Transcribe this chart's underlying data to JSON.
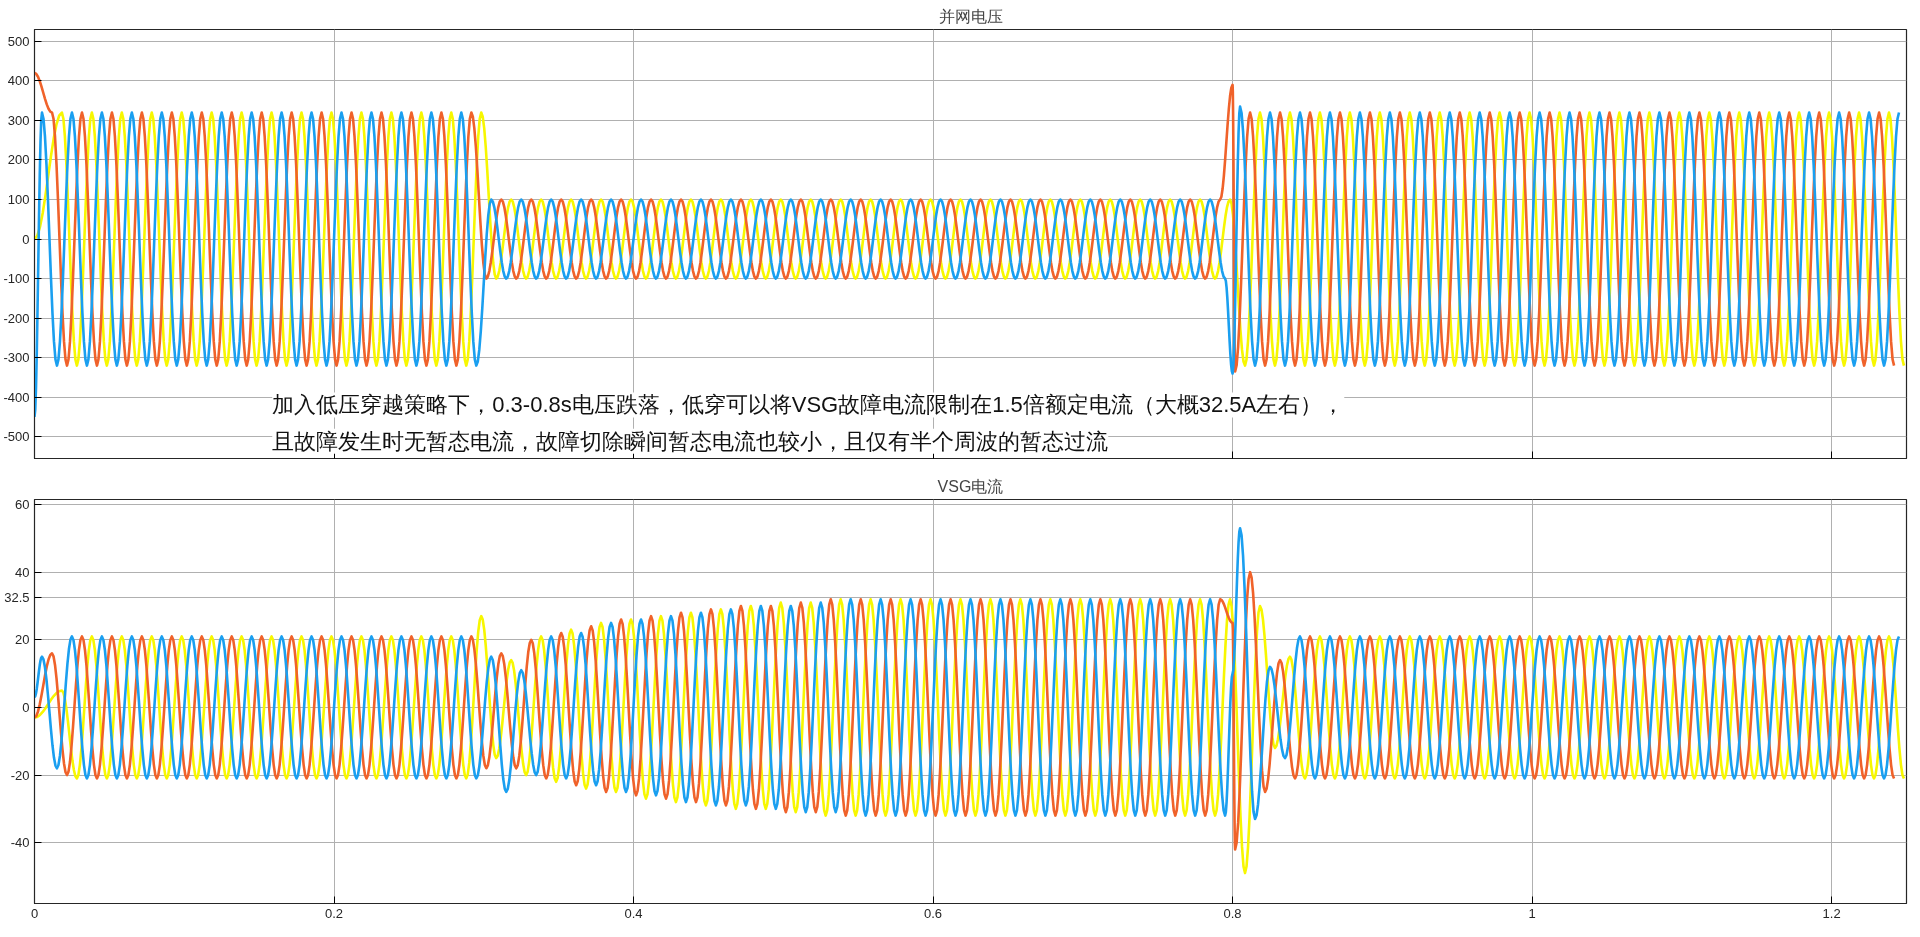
{
  "chart_data": [
    {
      "type": "line",
      "title": "并网电压",
      "xlim": [
        0,
        1.25
      ],
      "ylim": [
        -555,
        530
      ],
      "xticks": [
        0,
        0.2,
        0.4,
        0.6,
        0.8,
        1,
        1.2
      ],
      "yticks": [
        -500,
        -400,
        -300,
        -200,
        -100,
        0,
        100,
        200,
        300,
        400,
        500
      ],
      "grid": true,
      "tick_labels": "y",
      "annotations": [
        "加入低压穿越策略下，0.3-0.8s电压跌落，低穿可以将VSG故障电流限制在1.5倍额定电流（大概32.5A左右），",
        "且故障发生时无暂态电流，故障切除瞬间暂态电流也较小，且仅有半个周波的暂态过流"
      ],
      "series": [
        {
          "color": "#f7f700",
          "x": [
            0,
            0.0183,
            0.0283,
            0.0383,
            0.0483,
            0.0583,
            0.0683,
            0.0783,
            0.0883,
            0.0983,
            0.1083,
            0.1183,
            0.1283,
            0.1383,
            0.1483,
            0.1583,
            0.1683,
            0.1783,
            0.1883,
            0.1983,
            0.2083,
            0.2183,
            0.2283,
            0.2383,
            0.2483,
            0.2583,
            0.2683,
            0.2783,
            0.2883,
            0.2983,
            0.3083,
            0.3183,
            0.3283,
            0.3383,
            0.3483,
            0.3583,
            0.3683,
            0.3783,
            0.3883,
            0.3983,
            0.4083,
            0.4183,
            0.4283,
            0.4383,
            0.4483,
            0.4583,
            0.4683,
            0.4783,
            0.4883,
            0.4983,
            0.5083,
            0.5183,
            0.5283,
            0.5383,
            0.5483,
            0.5583,
            0.5683,
            0.5783,
            0.5883,
            0.5983,
            0.6083,
            0.6183,
            0.6283,
            0.6383,
            0.6483,
            0.6583,
            0.6683,
            0.6783,
            0.6883,
            0.6983,
            0.7083,
            0.7183,
            0.7283,
            0.7383,
            0.7483,
            0.7583,
            0.7683,
            0.7783,
            0.7883,
            0.7983,
            0.8083,
            0.8183,
            0.8283,
            0.8383,
            0.8483,
            0.8583,
            0.8683,
            0.8783,
            0.8883,
            0.8983,
            0.9083,
            0.9183,
            0.9283,
            0.9383,
            0.9483,
            0.9583,
            0.9683,
            0.9783,
            0.9883,
            0.9983,
            1.0083,
            1.0183,
            1.0283,
            1.0383,
            1.0483,
            1.0583,
            1.0683,
            1.0783,
            1.0883,
            1.0983,
            1.1083,
            1.1183,
            1.1283,
            1.1383,
            1.1483,
            1.1583,
            1.1683,
            1.1783,
            1.1883,
            1.1983,
            1.2083,
            1.2183,
            1.2283,
            1.2383,
            1.2483
          ],
          "values": [
            0,
            320,
            -320,
            320,
            -320,
            320,
            -320,
            320,
            -320,
            320,
            -320,
            320,
            -320,
            320,
            -320,
            320,
            -320,
            320,
            -320,
            320,
            -320,
            320,
            -320,
            320,
            -320,
            320,
            -320,
            320,
            -320,
            320,
            -100,
            100,
            -100,
            100,
            -100,
            100,
            -100,
            100,
            -100,
            100,
            -100,
            100,
            -100,
            100,
            -100,
            100,
            -100,
            100,
            -100,
            100,
            -100,
            100,
            -100,
            100,
            -100,
            100,
            -100,
            100,
            -100,
            100,
            -100,
            100,
            -100,
            100,
            -100,
            100,
            -100,
            100,
            -100,
            100,
            -100,
            100,
            -100,
            100,
            -100,
            100,
            -100,
            100,
            -100,
            100,
            -320,
            320,
            -320,
            320,
            -320,
            320,
            -320,
            320,
            -320,
            320,
            -320,
            320,
            -320,
            320,
            -320,
            320,
            -320,
            320,
            -320,
            320,
            -320,
            320,
            -320,
            320,
            -320,
            320,
            -320,
            320,
            -320,
            320,
            -320,
            320,
            -320,
            320,
            -320,
            320,
            -320,
            320,
            -320,
            320,
            -320,
            320,
            -320,
            320,
            -320
          ]
        },
        {
          "color": "#f0622a",
          "x": [
            0,
            0.0117,
            0.0217,
            0.0317,
            0.0417,
            0.0517,
            0.0617,
            0.0717,
            0.0817,
            0.0917,
            0.1017,
            0.1117,
            0.1217,
            0.1317,
            0.1417,
            0.1517,
            0.1617,
            0.1717,
            0.1817,
            0.1917,
            0.2017,
            0.2117,
            0.2217,
            0.2317,
            0.2417,
            0.2517,
            0.2617,
            0.2717,
            0.2817,
            0.2917,
            0.3017,
            0.3117,
            0.3217,
            0.3317,
            0.3417,
            0.3517,
            0.3617,
            0.3717,
            0.3817,
            0.3917,
            0.4017,
            0.4117,
            0.4217,
            0.4317,
            0.4417,
            0.4517,
            0.4617,
            0.4717,
            0.4817,
            0.4917,
            0.5017,
            0.5117,
            0.5217,
            0.5317,
            0.5417,
            0.5517,
            0.5617,
            0.5717,
            0.5817,
            0.5917,
            0.6017,
            0.6117,
            0.6217,
            0.6317,
            0.6417,
            0.6517,
            0.6617,
            0.6717,
            0.6817,
            0.6917,
            0.7017,
            0.7117,
            0.7217,
            0.7317,
            0.7417,
            0.7517,
            0.7617,
            0.7717,
            0.7817,
            0.7917,
            0.8,
            0.8017,
            0.8117,
            0.8217,
            0.8317,
            0.8417,
            0.8517,
            0.8617,
            0.8717,
            0.8817,
            0.8917,
            0.9017,
            0.9117,
            0.9217,
            0.9317,
            0.9417,
            0.9517,
            0.9617,
            0.9717,
            0.9817,
            0.9917,
            1.0017,
            1.0117,
            1.0217,
            1.0317,
            1.0417,
            1.0517,
            1.0617,
            1.0717,
            1.0817,
            1.0917,
            1.1017,
            1.1117,
            1.1217,
            1.1317,
            1.1417,
            1.1517,
            1.1617,
            1.1717,
            1.1817,
            1.1917,
            1.2017,
            1.2117,
            1.2217,
            1.2317,
            1.2417
          ],
          "values": [
            420,
            320,
            -320,
            320,
            -320,
            320,
            -320,
            320,
            -320,
            320,
            -320,
            320,
            -320,
            320,
            -320,
            320,
            -320,
            320,
            -320,
            320,
            -320,
            320,
            -320,
            320,
            -320,
            320,
            -320,
            320,
            -320,
            320,
            -100,
            100,
            -100,
            100,
            -100,
            100,
            -100,
            100,
            -100,
            100,
            -100,
            100,
            -100,
            100,
            -100,
            100,
            -100,
            100,
            -100,
            100,
            -100,
            100,
            -100,
            100,
            -100,
            100,
            -100,
            100,
            -100,
            100,
            -100,
            100,
            -100,
            100,
            -100,
            100,
            -100,
            100,
            -100,
            100,
            -100,
            100,
            -100,
            100,
            -100,
            100,
            -100,
            100,
            -100,
            100,
            390,
            -335,
            320,
            -320,
            320,
            -320,
            320,
            -320,
            320,
            -320,
            320,
            -320,
            320,
            -320,
            320,
            -320,
            320,
            -320,
            320,
            -320,
            320,
            -320,
            320,
            -320,
            320,
            -320,
            320,
            -320,
            320,
            -320,
            320,
            -320,
            320,
            -320,
            320,
            -320,
            320,
            -320,
            320,
            -320,
            320,
            -320,
            320,
            -320,
            320,
            -320
          ]
        },
        {
          "color": "#1a9ff0",
          "x": [
            0,
            0.005,
            0.015,
            0.025,
            0.035,
            0.045,
            0.055,
            0.065,
            0.075,
            0.085,
            0.095,
            0.105,
            0.115,
            0.125,
            0.135,
            0.145,
            0.155,
            0.165,
            0.175,
            0.185,
            0.195,
            0.205,
            0.215,
            0.225,
            0.235,
            0.245,
            0.255,
            0.265,
            0.275,
            0.285,
            0.295,
            0.305,
            0.315,
            0.325,
            0.335,
            0.345,
            0.355,
            0.365,
            0.375,
            0.385,
            0.395,
            0.405,
            0.415,
            0.425,
            0.435,
            0.445,
            0.455,
            0.465,
            0.475,
            0.485,
            0.495,
            0.505,
            0.515,
            0.525,
            0.535,
            0.545,
            0.555,
            0.565,
            0.575,
            0.585,
            0.595,
            0.605,
            0.615,
            0.625,
            0.635,
            0.645,
            0.655,
            0.665,
            0.675,
            0.685,
            0.695,
            0.705,
            0.715,
            0.725,
            0.735,
            0.745,
            0.755,
            0.765,
            0.775,
            0.785,
            0.795,
            0.8,
            0.805,
            0.815,
            0.825,
            0.835,
            0.845,
            0.855,
            0.865,
            0.875,
            0.885,
            0.895,
            0.905,
            0.915,
            0.925,
            0.935,
            0.945,
            0.955,
            0.965,
            0.975,
            0.985,
            0.995,
            1.005,
            1.015,
            1.025,
            1.035,
            1.045,
            1.055,
            1.065,
            1.075,
            1.085,
            1.095,
            1.105,
            1.115,
            1.125,
            1.135,
            1.145,
            1.155,
            1.165,
            1.175,
            1.185,
            1.195,
            1.205,
            1.215,
            1.225,
            1.235,
            1.245
          ],
          "values": [
            -450,
            320,
            -320,
            320,
            -320,
            320,
            -320,
            320,
            -320,
            320,
            -320,
            320,
            -320,
            320,
            -320,
            320,
            -320,
            320,
            -320,
            320,
            -320,
            320,
            -320,
            320,
            -320,
            320,
            -320,
            320,
            -320,
            320,
            -320,
            100,
            -100,
            100,
            -100,
            100,
            -100,
            100,
            -100,
            100,
            -100,
            100,
            -100,
            100,
            -100,
            100,
            -100,
            100,
            -100,
            100,
            -100,
            100,
            -100,
            100,
            -100,
            100,
            -100,
            100,
            -100,
            100,
            -100,
            100,
            -100,
            100,
            -100,
            100,
            -100,
            100,
            -100,
            100,
            -100,
            100,
            -100,
            100,
            -100,
            100,
            -100,
            100,
            -100,
            100,
            -100,
            -340,
            335,
            -320,
            320,
            -320,
            320,
            -320,
            320,
            -320,
            320,
            -320,
            320,
            -320,
            320,
            -320,
            320,
            -320,
            320,
            -320,
            320,
            -320,
            320,
            -320,
            320,
            -320,
            320,
            -320,
            320,
            -320,
            320,
            -320,
            320,
            -320,
            320,
            -320,
            320,
            -320,
            320,
            -320,
            320,
            -320,
            320,
            -320,
            320,
            -320,
            320
          ]
        }
      ]
    },
    {
      "type": "line",
      "title": "VSG电流",
      "xlim": [
        0,
        1.25
      ],
      "ylim": [
        -58,
        61.5
      ],
      "xticks": [
        0,
        0.2,
        0.4,
        0.6,
        0.8,
        1,
        1.2
      ],
      "yticks": [
        -40,
        -20,
        0,
        20,
        32.5,
        40,
        60
      ],
      "grid": true,
      "series": [
        {
          "color": "#f7f700",
          "x": [
            0,
            0.0183,
            0.0283,
            0.0383,
            0.0483,
            0.0583,
            0.0683,
            0.0783,
            0.0883,
            0.0983,
            0.1083,
            0.1183,
            0.1283,
            0.1383,
            0.1483,
            0.1583,
            0.1683,
            0.1783,
            0.1883,
            0.1983,
            0.2083,
            0.2183,
            0.2283,
            0.2383,
            0.2483,
            0.2583,
            0.2683,
            0.2783,
            0.2883,
            0.2983,
            0.3083,
            0.3183,
            0.3283,
            0.3383,
            0.3483,
            0.3583,
            0.3683,
            0.3783,
            0.3883,
            0.3983,
            0.4083,
            0.4183,
            0.4283,
            0.4383,
            0.4483,
            0.4583,
            0.4683,
            0.4783,
            0.4883,
            0.4983,
            0.5083,
            0.5183,
            0.5283,
            0.5383,
            0.5483,
            0.5583,
            0.5683,
            0.5783,
            0.5883,
            0.5983,
            0.6083,
            0.6183,
            0.6283,
            0.6383,
            0.6483,
            0.6583,
            0.6683,
            0.6783,
            0.6883,
            0.6983,
            0.7083,
            0.7183,
            0.7283,
            0.7383,
            0.7483,
            0.7583,
            0.7683,
            0.7783,
            0.7883,
            0.7983,
            0.8083,
            0.8183,
            0.8283,
            0.8383,
            0.8483,
            0.8583,
            0.8683,
            0.8783,
            0.8883,
            0.8983,
            0.9083,
            0.9183,
            0.9283,
            0.9383,
            0.9483,
            0.9583,
            0.9683,
            0.9783,
            0.9883,
            0.9983,
            1.0083,
            1.0183,
            1.0283,
            1.0383,
            1.0483,
            1.0583,
            1.0683,
            1.0783,
            1.0883,
            1.0983,
            1.1083,
            1.1183,
            1.1283,
            1.1383,
            1.1483,
            1.1583,
            1.1683,
            1.1783,
            1.1883,
            1.1983,
            1.2083,
            1.2183,
            1.2283,
            1.2383,
            1.2483
          ],
          "values": [
            -3,
            5,
            -21,
            21,
            -21,
            21,
            -21,
            21,
            -21,
            21,
            -21,
            21,
            -21,
            21,
            -21,
            21,
            -21,
            21,
            -21,
            21,
            -21,
            21,
            -21,
            21,
            -21,
            21,
            -21,
            21,
            -21,
            27,
            -15,
            14,
            -20,
            21,
            -22,
            23,
            -24,
            25,
            -25,
            26,
            -27,
            27,
            -28,
            28,
            -29,
            29,
            -30,
            30,
            -30,
            31,
            -31,
            31,
            -32,
            32,
            -32,
            32,
            -32,
            32,
            -32,
            32,
            -32,
            32,
            -32,
            32,
            -32,
            32,
            -32,
            32,
            -32,
            32,
            -32,
            32,
            -32,
            32,
            -32,
            32,
            -32,
            32,
            -32,
            32,
            -49,
            30,
            -12,
            15,
            -21,
            21,
            -21,
            21,
            -21,
            21,
            -21,
            21,
            -21,
            21,
            -21,
            21,
            -21,
            21,
            -21,
            21,
            -21,
            21,
            -21,
            21,
            -21,
            21,
            -21,
            21,
            -21,
            21,
            -21,
            21,
            -21,
            21,
            -21,
            21,
            -21,
            21,
            -21,
            21,
            -21,
            21,
            -21,
            21,
            -21
          ]
        },
        {
          "color": "#f0622a",
          "x": [
            0,
            0.0117,
            0.0217,
            0.0317,
            0.0417,
            0.0517,
            0.0617,
            0.0717,
            0.0817,
            0.0917,
            0.1017,
            0.1117,
            0.1217,
            0.1317,
            0.1417,
            0.1517,
            0.1617,
            0.1717,
            0.1817,
            0.1917,
            0.2017,
            0.2117,
            0.2217,
            0.2317,
            0.2417,
            0.2517,
            0.2617,
            0.2717,
            0.2817,
            0.2917,
            0.3017,
            0.3117,
            0.3217,
            0.3317,
            0.3417,
            0.3517,
            0.3617,
            0.3717,
            0.3817,
            0.3917,
            0.4017,
            0.4117,
            0.4217,
            0.4317,
            0.4417,
            0.4517,
            0.4617,
            0.4717,
            0.4817,
            0.4917,
            0.5017,
            0.5117,
            0.5217,
            0.5317,
            0.5417,
            0.5517,
            0.5617,
            0.5717,
            0.5817,
            0.5917,
            0.6017,
            0.6117,
            0.6217,
            0.6317,
            0.6417,
            0.6517,
            0.6617,
            0.6717,
            0.6817,
            0.6917,
            0.7017,
            0.7117,
            0.7217,
            0.7317,
            0.7417,
            0.7517,
            0.7617,
            0.7717,
            0.7817,
            0.7917,
            0.8,
            0.8017,
            0.8117,
            0.8217,
            0.8317,
            0.8417,
            0.8517,
            0.8617,
            0.8717,
            0.8817,
            0.8917,
            0.9017,
            0.9117,
            0.9217,
            0.9317,
            0.9417,
            0.9517,
            0.9617,
            0.9717,
            0.9817,
            0.9917,
            1.0017,
            1.0117,
            1.0217,
            1.0317,
            1.0417,
            1.0517,
            1.0617,
            1.0717,
            1.0817,
            1.0917,
            1.1017,
            1.1117,
            1.1217,
            1.1317,
            1.1417,
            1.1517,
            1.1617,
            1.1717,
            1.1817,
            1.1917,
            1.2017,
            1.2117,
            1.2217,
            1.2317,
            1.2417
          ],
          "values": [
            -3,
            16,
            -20,
            21,
            -21,
            21,
            -21,
            21,
            -21,
            21,
            -21,
            21,
            -21,
            21,
            -21,
            21,
            -21,
            21,
            -21,
            21,
            -21,
            21,
            -21,
            21,
            -21,
            21,
            -21,
            21,
            -21,
            21,
            -18,
            16,
            -18,
            20,
            -21,
            22,
            -23,
            24,
            -25,
            26,
            -26,
            27,
            -27,
            28,
            -28,
            29,
            -29,
            30,
            -30,
            30,
            -31,
            31,
            -31,
            32,
            -32,
            32,
            -32,
            32,
            -32,
            32,
            -32,
            32,
            -32,
            32,
            -32,
            32,
            -32,
            32,
            -32,
            32,
            -32,
            32,
            -32,
            32,
            -32,
            32,
            -32,
            32,
            -32,
            32,
            25,
            -42,
            40,
            -25,
            14,
            -21,
            21,
            -21,
            21,
            -21,
            21,
            -21,
            21,
            -21,
            21,
            -21,
            21,
            -21,
            21,
            -21,
            21,
            -21,
            21,
            -21,
            21,
            -21,
            21,
            -21,
            21,
            -21,
            21,
            -21,
            21,
            -21,
            21,
            -21,
            21,
            -21,
            21,
            -21,
            21,
            -21,
            21,
            -21,
            21,
            -21
          ]
        },
        {
          "color": "#1a9ff0",
          "x": [
            0,
            0.005,
            0.015,
            0.025,
            0.035,
            0.045,
            0.055,
            0.065,
            0.075,
            0.085,
            0.095,
            0.105,
            0.115,
            0.125,
            0.135,
            0.145,
            0.155,
            0.165,
            0.175,
            0.185,
            0.195,
            0.205,
            0.215,
            0.225,
            0.235,
            0.245,
            0.255,
            0.265,
            0.275,
            0.285,
            0.295,
            0.305,
            0.315,
            0.325,
            0.335,
            0.345,
            0.355,
            0.365,
            0.375,
            0.385,
            0.395,
            0.405,
            0.415,
            0.425,
            0.435,
            0.445,
            0.455,
            0.465,
            0.475,
            0.485,
            0.495,
            0.505,
            0.515,
            0.525,
            0.535,
            0.545,
            0.555,
            0.565,
            0.575,
            0.585,
            0.595,
            0.605,
            0.615,
            0.625,
            0.635,
            0.645,
            0.655,
            0.665,
            0.675,
            0.685,
            0.695,
            0.705,
            0.715,
            0.725,
            0.735,
            0.745,
            0.755,
            0.765,
            0.775,
            0.785,
            0.795,
            0.8,
            0.805,
            0.815,
            0.825,
            0.835,
            0.845,
            0.855,
            0.865,
            0.875,
            0.885,
            0.895,
            0.905,
            0.915,
            0.925,
            0.935,
            0.945,
            0.955,
            0.965,
            0.975,
            0.985,
            0.995,
            1.005,
            1.015,
            1.025,
            1.035,
            1.045,
            1.055,
            1.065,
            1.075,
            1.085,
            1.095,
            1.105,
            1.115,
            1.125,
            1.135,
            1.145,
            1.155,
            1.165,
            1.175,
            1.185,
            1.195,
            1.205,
            1.215,
            1.225,
            1.235,
            1.245
          ],
          "values": [
            3,
            15,
            -18,
            21,
            -21,
            21,
            -21,
            21,
            -21,
            21,
            -21,
            21,
            -21,
            21,
            -21,
            21,
            -21,
            21,
            -21,
            21,
            -21,
            21,
            -21,
            21,
            -21,
            21,
            -21,
            21,
            -21,
            21,
            -21,
            15,
            -25,
            11,
            -20,
            21,
            -21,
            22,
            -23,
            25,
            -25,
            26,
            -26,
            27,
            -28,
            28,
            -29,
            29,
            -29,
            30,
            -30,
            30,
            -31,
            31,
            -31,
            32,
            -32,
            32,
            -32,
            32,
            -32,
            32,
            -32,
            32,
            -32,
            32,
            -32,
            32,
            -32,
            32,
            -32,
            32,
            -32,
            32,
            -32,
            32,
            -32,
            32,
            -32,
            32,
            -32,
            10,
            53,
            -33,
            12,
            -15,
            21,
            -21,
            21,
            -21,
            21,
            -21,
            21,
            -21,
            21,
            -21,
            21,
            -21,
            21,
            -21,
            21,
            -21,
            21,
            -21,
            21,
            -21,
            21,
            -21,
            21,
            -21,
            21,
            -21,
            21,
            -21,
            21,
            -21,
            21,
            -21,
            21,
            -21,
            21,
            -21,
            21,
            -21,
            21,
            -21,
            21
          ]
        }
      ]
    }
  ]
}
